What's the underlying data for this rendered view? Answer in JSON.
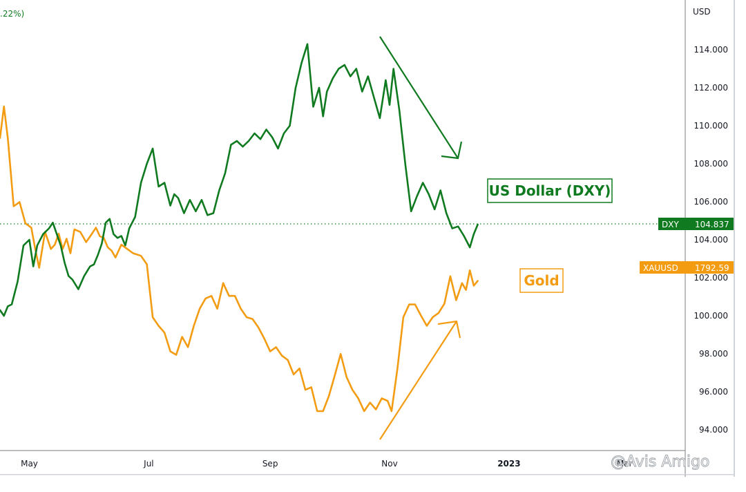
{
  "top_left_fragment": ".22%)",
  "chart_data": {
    "type": "line",
    "y_axis": {
      "unit_label": "USD",
      "ylim": [
        93.0,
        117.0
      ],
      "tick_values": [
        94,
        96,
        98,
        100,
        102,
        104,
        106,
        108,
        110,
        112,
        114
      ],
      "tick_labels": [
        "94.000",
        "96.000",
        "98.000",
        "100.000",
        "102.000",
        "104.000",
        "106.000",
        "108.000",
        "110.000",
        "112.000",
        "114.000"
      ],
      "position": "right"
    },
    "x_axis": {
      "xlim": [
        "2022-04-16",
        "2023-04-01"
      ],
      "ticks": [
        {
          "date": "2022-05-01",
          "label": "May"
        },
        {
          "date": "2022-07-01",
          "label": "Jul"
        },
        {
          "date": "2022-09-01",
          "label": "Sep"
        },
        {
          "date": "2022-11-01",
          "label": "Nov"
        },
        {
          "date": "2023-01-01",
          "label": "2023"
        },
        {
          "date": "2023-03-01",
          "label": "Mar"
        }
      ]
    },
    "grid": false,
    "series": [
      {
        "name": "DXY",
        "color": "#0f7a1f",
        "x": [
          "2022-04-16",
          "2022-04-18",
          "2022-04-20",
          "2022-04-22",
          "2022-04-25",
          "2022-04-28",
          "2022-05-01",
          "2022-05-03",
          "2022-05-05",
          "2022-05-08",
          "2022-05-11",
          "2022-05-13",
          "2022-05-15",
          "2022-05-17",
          "2022-05-19",
          "2022-05-21",
          "2022-05-23",
          "2022-05-26",
          "2022-05-29",
          "2022-06-01",
          "2022-06-03",
          "2022-06-05",
          "2022-06-07",
          "2022-06-09",
          "2022-06-11",
          "2022-06-13",
          "2022-06-15",
          "2022-06-17",
          "2022-06-19",
          "2022-06-21",
          "2022-06-24",
          "2022-06-27",
          "2022-06-30",
          "2022-07-03",
          "2022-07-06",
          "2022-07-09",
          "2022-07-12",
          "2022-07-14",
          "2022-07-16",
          "2022-07-19",
          "2022-07-22",
          "2022-07-25",
          "2022-07-28",
          "2022-07-31",
          "2022-08-03",
          "2022-08-06",
          "2022-08-09",
          "2022-08-12",
          "2022-08-15",
          "2022-08-18",
          "2022-08-21",
          "2022-08-24",
          "2022-08-27",
          "2022-08-30",
          "2022-09-02",
          "2022-09-05",
          "2022-09-08",
          "2022-09-11",
          "2022-09-14",
          "2022-09-17",
          "2022-09-20",
          "2022-09-23",
          "2022-09-26",
          "2022-09-28",
          "2022-09-30",
          "2022-10-03",
          "2022-10-06",
          "2022-10-09",
          "2022-10-12",
          "2022-10-15",
          "2022-10-18",
          "2022-10-21",
          "2022-10-24",
          "2022-10-27",
          "2022-10-30",
          "2022-11-01",
          "2022-11-03",
          "2022-11-06",
          "2022-11-09",
          "2022-11-12",
          "2022-11-15",
          "2022-11-18",
          "2022-11-21",
          "2022-11-24",
          "2022-11-27",
          "2022-11-30",
          "2022-12-03",
          "2022-12-06",
          "2022-12-09",
          "2022-12-12",
          "2022-12-14",
          "2022-12-16"
        ],
        "values": [
          100.3,
          100.0,
          100.5,
          100.6,
          101.8,
          103.7,
          104.0,
          102.6,
          103.7,
          104.3,
          104.6,
          104.9,
          104.3,
          103.7,
          102.8,
          102.1,
          101.9,
          101.4,
          102.1,
          102.6,
          102.7,
          103.2,
          103.8,
          104.9,
          105.1,
          104.3,
          104.1,
          104.2,
          103.7,
          104.6,
          105.2,
          107.0,
          108.0,
          108.8,
          106.8,
          107.0,
          105.8,
          106.4,
          106.2,
          105.4,
          106.1,
          105.5,
          106.1,
          105.3,
          105.4,
          106.6,
          107.5,
          109.0,
          109.2,
          108.9,
          109.2,
          109.6,
          109.3,
          109.8,
          109.4,
          108.8,
          109.6,
          110.0,
          112.0,
          113.3,
          114.3,
          111.0,
          112.0,
          110.5,
          111.8,
          112.5,
          113.0,
          113.2,
          112.6,
          113.0,
          111.8,
          112.6,
          111.5,
          110.4,
          112.4,
          111.1,
          113.0,
          110.8,
          108.0,
          105.5,
          106.3,
          107.0,
          106.4,
          105.6,
          106.6,
          105.4,
          104.6,
          104.7,
          104.2,
          103.6,
          104.3,
          104.8
        ]
      },
      {
        "name": "XAUUSD",
        "color": "#f39c12",
        "x": [
          "2022-04-16",
          "2022-04-18",
          "2022-04-20",
          "2022-04-23",
          "2022-04-26",
          "2022-04-29",
          "2022-05-02",
          "2022-05-04",
          "2022-05-06",
          "2022-05-09",
          "2022-05-12",
          "2022-05-14",
          "2022-05-16",
          "2022-05-18",
          "2022-05-20",
          "2022-05-22",
          "2022-05-24",
          "2022-05-27",
          "2022-05-30",
          "2022-06-02",
          "2022-06-04",
          "2022-06-06",
          "2022-06-08",
          "2022-06-10",
          "2022-06-12",
          "2022-06-14",
          "2022-06-17",
          "2022-06-20",
          "2022-06-23",
          "2022-06-27",
          "2022-06-30",
          "2022-07-03",
          "2022-07-06",
          "2022-07-09",
          "2022-07-12",
          "2022-07-15",
          "2022-07-18",
          "2022-07-21",
          "2022-07-24",
          "2022-07-27",
          "2022-07-30",
          "2022-08-02",
          "2022-08-05",
          "2022-08-08",
          "2022-08-11",
          "2022-08-14",
          "2022-08-17",
          "2022-08-20",
          "2022-08-23",
          "2022-08-26",
          "2022-08-29",
          "2022-09-01",
          "2022-09-04",
          "2022-09-07",
          "2022-09-10",
          "2022-09-13",
          "2022-09-16",
          "2022-09-19",
          "2022-09-22",
          "2022-09-25",
          "2022-09-28",
          "2022-10-01",
          "2022-10-04",
          "2022-10-07",
          "2022-10-10",
          "2022-10-13",
          "2022-10-16",
          "2022-10-19",
          "2022-10-22",
          "2022-10-25",
          "2022-10-28",
          "2022-10-31",
          "2022-11-02",
          "2022-11-05",
          "2022-11-08",
          "2022-11-11",
          "2022-11-14",
          "2022-11-17",
          "2022-11-20",
          "2022-11-23",
          "2022-11-26",
          "2022-11-29",
          "2022-12-02",
          "2022-12-05",
          "2022-12-08",
          "2022-12-10",
          "2022-12-12",
          "2022-12-14",
          "2022-12-16"
        ],
        "values": [
          1960,
          1997,
          1960,
          1880,
          1885,
          1860,
          1855,
          1830,
          1808,
          1850,
          1830,
          1835,
          1848,
          1830,
          1842,
          1825,
          1853,
          1850,
          1838,
          1848,
          1855,
          1845,
          1843,
          1832,
          1828,
          1820,
          1835,
          1830,
          1825,
          1822,
          1812,
          1750,
          1740,
          1732,
          1710,
          1706,
          1727,
          1715,
          1740,
          1760,
          1772,
          1775,
          1760,
          1790,
          1775,
          1775,
          1760,
          1750,
          1748,
          1738,
          1725,
          1710,
          1715,
          1705,
          1700,
          1683,
          1690,
          1665,
          1668,
          1640,
          1640,
          1658,
          1682,
          1707,
          1680,
          1665,
          1655,
          1640,
          1650,
          1642,
          1655,
          1652,
          1640,
          1690,
          1750,
          1765,
          1765,
          1752,
          1740,
          1750,
          1755,
          1766,
          1798,
          1770,
          1790,
          1782,
          1805,
          1787,
          1792.59
        ]
      }
    ],
    "annotations": {
      "dxy_label": "US Dollar (DXY)",
      "gold_label": "Gold",
      "dxy_color": "#0f7a1f",
      "gold_color": "#f39c12"
    },
    "last_price_line_value": 104.837,
    "price_tags": [
      {
        "name": "DXY",
        "value": "104.837",
        "color": "#0f7a1f"
      },
      {
        "name": "XAUUSD",
        "value": "1792.59",
        "color": "#f39c12"
      }
    ],
    "watermark": "@Avis Amigo"
  }
}
